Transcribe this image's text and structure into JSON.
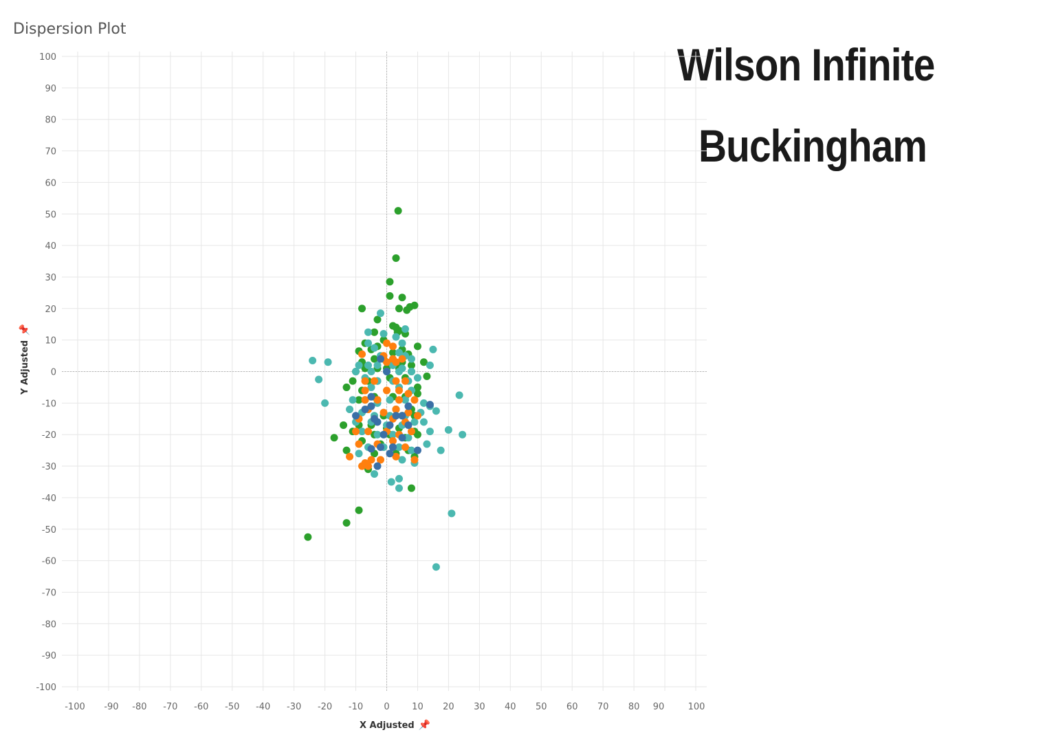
{
  "sheet_title": "Dispersion Plot",
  "headline": {
    "line1": "Wilson Infinite",
    "line2": "Buckingham"
  },
  "icons": {
    "pin": "pin-icon"
  },
  "colors": {
    "green": "#2ca02c",
    "teal": "#4bb8b0",
    "orange": "#ff7f0e",
    "blue": "#3a6fa6",
    "grid": "#e6e6e6",
    "zero_line": "#b8b8b8"
  },
  "chart_data": {
    "type": "scatter",
    "title": "Dispersion Plot",
    "xlabel": "X Adjusted",
    "ylabel": "Y Adjusted",
    "xlim": [
      -100,
      100
    ],
    "ylim": [
      -100,
      100
    ],
    "x_ticks": [
      -100,
      -90,
      -80,
      -70,
      -60,
      -50,
      -40,
      -30,
      -20,
      -10,
      0,
      10,
      20,
      30,
      40,
      50,
      60,
      70,
      80,
      90,
      100
    ],
    "y_ticks": [
      100,
      90,
      80,
      70,
      60,
      50,
      40,
      30,
      20,
      10,
      0,
      -10,
      -20,
      -30,
      -40,
      -50,
      -60,
      -70,
      -80,
      -90,
      -100
    ],
    "x_tick_labels": [
      "-100",
      "-90",
      "-80",
      "-70",
      "-60",
      "-50",
      "-40",
      "-30",
      "-20",
      "-10",
      "0",
      "10",
      "20",
      "30",
      "40",
      "50",
      "60",
      "70",
      "80",
      "90",
      "100"
    ],
    "y_tick_labels": [
      "100",
      "90",
      "80",
      "70",
      "60",
      "50",
      "40",
      "30",
      "20",
      "10",
      "0",
      "-10",
      "-20",
      "-30",
      "-40",
      "-50",
      "-60",
      "-70",
      "-80",
      "-90",
      "-100"
    ],
    "grid": true,
    "zero_lines": true,
    "series": [
      {
        "color": "#2ca02c",
        "points": [
          [
            3.7,
            51
          ],
          [
            3,
            36
          ],
          [
            1,
            28.5
          ],
          [
            1,
            24
          ],
          [
            5,
            23.5
          ],
          [
            -8,
            20
          ],
          [
            4,
            20
          ],
          [
            6.5,
            19.5
          ],
          [
            7.5,
            20.5
          ],
          [
            9,
            21
          ],
          [
            -3,
            16.5
          ],
          [
            2,
            14.5
          ],
          [
            3,
            14
          ],
          [
            3.5,
            12.5
          ],
          [
            4,
            13
          ],
          [
            6,
            12
          ],
          [
            -4,
            12.5
          ],
          [
            -1,
            10
          ],
          [
            -7,
            9
          ],
          [
            -3,
            8
          ],
          [
            -5,
            7
          ],
          [
            2,
            6
          ],
          [
            5,
            7
          ],
          [
            7,
            5.5
          ],
          [
            10,
            8
          ],
          [
            -9,
            6.5
          ],
          [
            -1,
            4
          ],
          [
            2,
            3
          ],
          [
            5,
            3
          ],
          [
            8,
            2
          ],
          [
            12,
            3
          ],
          [
            -4,
            4
          ],
          [
            -8,
            3
          ],
          [
            -10,
            0
          ],
          [
            -7,
            1
          ],
          [
            -3,
            1
          ],
          [
            0,
            1
          ],
          [
            4,
            1
          ],
          [
            8,
            0
          ],
          [
            13,
            -1.5
          ],
          [
            -11,
            -3
          ],
          [
            -6,
            -3
          ],
          [
            -3,
            -3
          ],
          [
            1,
            -2
          ],
          [
            6,
            -2
          ],
          [
            10,
            -5
          ],
          [
            -13,
            -5
          ],
          [
            -8,
            -6
          ],
          [
            -4,
            -8
          ],
          [
            2,
            -8
          ],
          [
            6,
            -8
          ],
          [
            10,
            -7
          ],
          [
            -9,
            -9
          ],
          [
            -3,
            -9
          ],
          [
            3,
            -12
          ],
          [
            8,
            -12
          ],
          [
            -1,
            -14
          ],
          [
            5,
            -14
          ],
          [
            9,
            -14
          ],
          [
            -14,
            -17
          ],
          [
            -9,
            -17
          ],
          [
            -5,
            -17
          ],
          [
            0,
            -18
          ],
          [
            4,
            -18
          ],
          [
            9,
            -19
          ],
          [
            -11,
            -19
          ],
          [
            -4,
            -20
          ],
          [
            1,
            -20
          ],
          [
            6,
            -21
          ],
          [
            10,
            -20
          ],
          [
            -17,
            -21
          ],
          [
            -8,
            -22
          ],
          [
            -2,
            -23
          ],
          [
            2,
            -24
          ],
          [
            7,
            -25
          ],
          [
            -13,
            -25
          ],
          [
            -4,
            -26
          ],
          [
            3,
            -26
          ],
          [
            9,
            -27
          ],
          [
            -6,
            -31
          ],
          [
            8,
            -37
          ],
          [
            -9,
            -44
          ],
          [
            -13,
            -48
          ],
          [
            -25.5,
            -52.5
          ]
        ]
      },
      {
        "color": "#4bb8b0",
        "points": [
          [
            -2,
            18.5
          ],
          [
            6,
            13.5
          ],
          [
            -6,
            12.5
          ],
          [
            -1,
            12
          ],
          [
            3,
            11
          ],
          [
            5,
            9
          ],
          [
            -6,
            9
          ],
          [
            -4,
            7.5
          ],
          [
            15,
            7
          ],
          [
            -2,
            5
          ],
          [
            4,
            6
          ],
          [
            6,
            5
          ],
          [
            8,
            4
          ],
          [
            -9,
            2
          ],
          [
            -6,
            2
          ],
          [
            -3,
            2
          ],
          [
            2,
            2
          ],
          [
            5,
            1
          ],
          [
            14,
            2
          ],
          [
            -24,
            3.5
          ],
          [
            -19,
            3
          ],
          [
            -10,
            0
          ],
          [
            -5,
            0
          ],
          [
            0,
            0
          ],
          [
            4,
            0
          ],
          [
            8,
            0
          ],
          [
            -22,
            -2.5
          ],
          [
            -7,
            -2
          ],
          [
            -3,
            -3
          ],
          [
            2,
            -3
          ],
          [
            7,
            -3
          ],
          [
            10,
            -2
          ],
          [
            -5,
            -5
          ],
          [
            4,
            -5
          ],
          [
            8,
            -6
          ],
          [
            -11,
            -9
          ],
          [
            -7,
            -9
          ],
          [
            -3,
            -10
          ],
          [
            1,
            -9
          ],
          [
            6,
            -9
          ],
          [
            12,
            -10
          ],
          [
            14,
            -11
          ],
          [
            -20,
            -10
          ],
          [
            23.5,
            -7.5
          ],
          [
            -12,
            -12
          ],
          [
            -8,
            -13
          ],
          [
            -4,
            -14
          ],
          [
            1,
            -14
          ],
          [
            6,
            -14
          ],
          [
            11,
            -13
          ],
          [
            16,
            -12.5
          ],
          [
            -10,
            -16
          ],
          [
            -5,
            -16
          ],
          [
            0,
            -17
          ],
          [
            5,
            -17
          ],
          [
            9,
            -16
          ],
          [
            12,
            -16
          ],
          [
            -8,
            -19
          ],
          [
            -3,
            -20
          ],
          [
            2,
            -20
          ],
          [
            7,
            -21
          ],
          [
            14,
            -19
          ],
          [
            20,
            -18.5
          ],
          [
            24.5,
            -20
          ],
          [
            -6,
            -24
          ],
          [
            -1,
            -24
          ],
          [
            4,
            -24
          ],
          [
            8,
            -25
          ],
          [
            13,
            -23
          ],
          [
            -9,
            -26
          ],
          [
            5,
            -28
          ],
          [
            9,
            -29
          ],
          [
            17.5,
            -25
          ],
          [
            -4,
            -32.5
          ],
          [
            1.5,
            -35
          ],
          [
            4,
            -34
          ],
          [
            4,
            -37
          ],
          [
            21,
            -45
          ],
          [
            16,
            -62
          ]
        ]
      },
      {
        "color": "#ff7f0e",
        "points": [
          [
            0,
            9
          ],
          [
            2,
            8
          ],
          [
            -8,
            5.5
          ],
          [
            -1,
            5
          ],
          [
            2,
            4
          ],
          [
            5,
            4
          ],
          [
            0,
            3
          ],
          [
            3,
            3
          ],
          [
            -7,
            -3
          ],
          [
            -4,
            -3
          ],
          [
            3,
            -3
          ],
          [
            6,
            -3
          ],
          [
            -7,
            -6
          ],
          [
            0,
            -6
          ],
          [
            4,
            -6
          ],
          [
            7,
            -7
          ],
          [
            -7,
            -9
          ],
          [
            -3,
            -9
          ],
          [
            4,
            -9
          ],
          [
            9,
            -9
          ],
          [
            -6,
            -12
          ],
          [
            -1,
            -13
          ],
          [
            3,
            -12
          ],
          [
            7,
            -13
          ],
          [
            -9,
            -15
          ],
          [
            -4,
            -15
          ],
          [
            2,
            -15
          ],
          [
            6,
            -16
          ],
          [
            10,
            -14
          ],
          [
            -10,
            -19
          ],
          [
            -6,
            -19
          ],
          [
            0,
            -19
          ],
          [
            4,
            -20
          ],
          [
            8,
            -19
          ],
          [
            -9,
            -23
          ],
          [
            -3,
            -23
          ],
          [
            2,
            -22
          ],
          [
            6,
            -24
          ],
          [
            -12,
            -27
          ],
          [
            -5,
            -28
          ],
          [
            3,
            -27
          ],
          [
            9,
            -28
          ],
          [
            -8,
            -30
          ],
          [
            -6,
            -30
          ],
          [
            -2,
            -28
          ],
          [
            -7,
            -29
          ]
        ]
      },
      {
        "color": "#3a6fa6",
        "points": [
          [
            0,
            0
          ],
          [
            -2,
            4
          ],
          [
            -5,
            -8
          ],
          [
            -5,
            -11
          ],
          [
            -7,
            -12
          ],
          [
            -10,
            -14
          ],
          [
            -4,
            -15
          ],
          [
            -3,
            -16
          ],
          [
            1,
            -17
          ],
          [
            3,
            -14
          ],
          [
            7,
            -17
          ],
          [
            14,
            -10.5
          ],
          [
            7,
            -11
          ],
          [
            -1,
            -20
          ],
          [
            5,
            -21
          ],
          [
            2,
            -24
          ],
          [
            -2,
            -24
          ],
          [
            -3,
            -30
          ],
          [
            -5,
            -24.5
          ],
          [
            10,
            -25
          ],
          [
            1,
            -26
          ],
          [
            5,
            -14
          ]
        ]
      }
    ]
  }
}
